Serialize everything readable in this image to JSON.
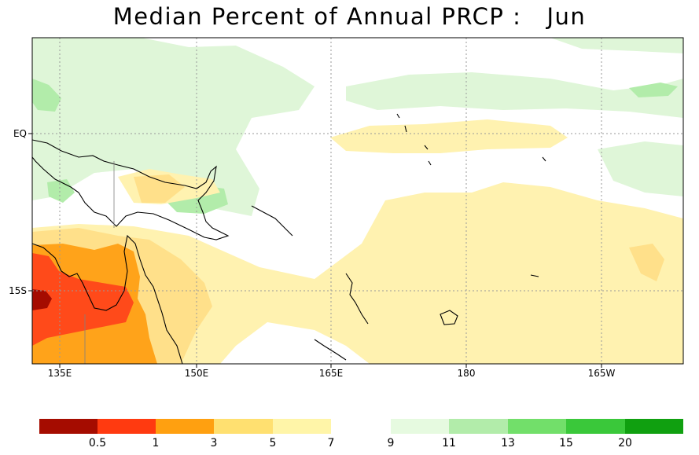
{
  "title": "Median Percent of Annual PRCP :   Jun",
  "map": {
    "region": "Western tropical Pacific",
    "colors": {
      "land_outline": "#000000",
      "border": "#808080",
      "grid": "#9a9a9a",
      "shade_lt5": "#ffe08a",
      "shade_lt7": "#fff2b0",
      "shade_1_3": "#ffa31a",
      "shade_05_1": "#ff4a1a",
      "shade_lt05": "#a50c00",
      "shade_9_11": "#dff6d8",
      "shade_11_13": "#b2ecaa",
      "shade_13_15": "#72df6a"
    },
    "x_ticks": [
      "135E",
      "150E",
      "165E",
      "180",
      "165W"
    ],
    "y_ticks": [
      "EQ",
      "15S"
    ]
  },
  "colorbar": {
    "dry": {
      "colors": [
        "#a50c00",
        "#ff3a10",
        "#ffa010",
        "#ffe070",
        "#fff5a8"
      ],
      "labels": [
        "0.5",
        "1",
        "3",
        "5",
        "7"
      ]
    },
    "wet": {
      "colors": [
        "#e6fae0",
        "#b2ecaa",
        "#72df6a",
        "#3ac83a",
        "#10a010"
      ],
      "labels": [
        "9",
        "11",
        "13",
        "15",
        "20"
      ]
    }
  }
}
